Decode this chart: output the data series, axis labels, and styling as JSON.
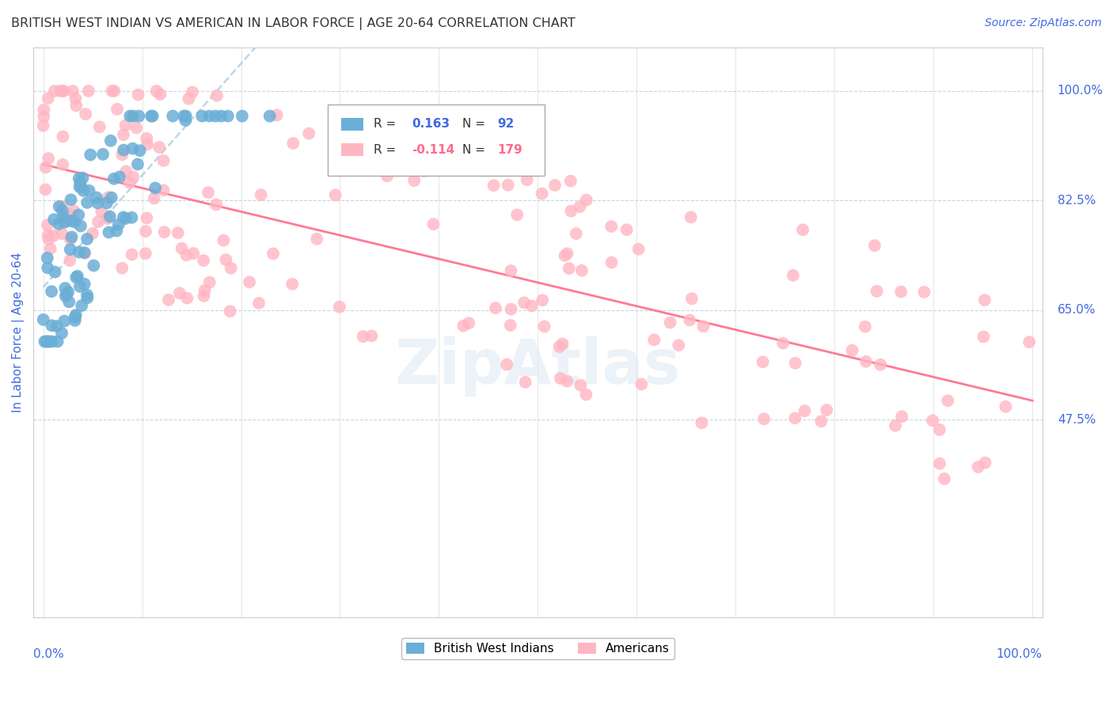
{
  "title": "BRITISH WEST INDIAN VS AMERICAN IN LABOR FORCE | AGE 20-64 CORRELATION CHART",
  "source": "Source: ZipAtlas.com",
  "ylabel": "In Labor Force | Age 20-64",
  "ytick_labels": [
    "100.0%",
    "82.5%",
    "65.0%",
    "47.5%"
  ],
  "ytick_values": [
    1.0,
    0.825,
    0.65,
    0.475
  ],
  "legend_blue": "British West Indians",
  "legend_pink": "Americans",
  "R_blue": 0.163,
  "N_blue": 92,
  "R_pink": -0.114,
  "N_pink": 179,
  "blue_color": "#6baed6",
  "pink_color": "#ffb6c1",
  "trend_blue_color": "#b0cfe8",
  "trend_pink_color": "#ff6b8a",
  "title_color": "#333333",
  "axis_label_color": "#4169e1",
  "bg_color": "#ffffff"
}
